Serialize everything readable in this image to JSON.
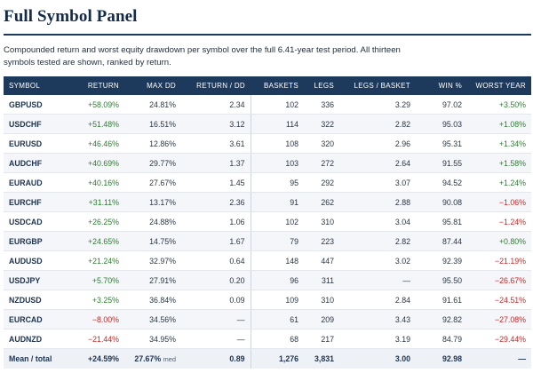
{
  "title": "Full Symbol Panel",
  "subtitle": "Compounded return and worst equity drawdown per symbol over the full 6.41-year test period. All thirteen symbols tested are shown, ranked by return.",
  "colors": {
    "header_bg": "#1d3a5c",
    "positive": "#2e7d32",
    "negative": "#c62828"
  },
  "columns": [
    "SYMBOL",
    "RETURN",
    "MAX DD",
    "RETURN / DD",
    "BASKETS",
    "LEGS",
    "LEGS / BASKET",
    "WIN %",
    "WORST YEAR"
  ],
  "rows": [
    [
      "GBPUSD",
      "+58.09%",
      "24.81%",
      "2.34",
      "102",
      "336",
      "3.29",
      "97.02",
      "+3.50%"
    ],
    [
      "USDCHF",
      "+51.48%",
      "16.51%",
      "3.12",
      "114",
      "322",
      "2.82",
      "95.03",
      "+1.08%"
    ],
    [
      "EURUSD",
      "+46.46%",
      "12.86%",
      "3.61",
      "108",
      "320",
      "2.96",
      "95.31",
      "+1.34%"
    ],
    [
      "AUDCHF",
      "+40.69%",
      "29.77%",
      "1.37",
      "103",
      "272",
      "2.64",
      "91.55",
      "+1.58%"
    ],
    [
      "EURAUD",
      "+40.16%",
      "27.67%",
      "1.45",
      "95",
      "292",
      "3.07",
      "94.52",
      "+1.24%"
    ],
    [
      "EURCHF",
      "+31.11%",
      "13.17%",
      "2.36",
      "91",
      "262",
      "2.88",
      "90.08",
      "−1.06%"
    ],
    [
      "USDCAD",
      "+26.25%",
      "24.88%",
      "1.06",
      "102",
      "310",
      "3.04",
      "95.81",
      "−1.24%"
    ],
    [
      "EURGBP",
      "+24.65%",
      "14.75%",
      "1.67",
      "79",
      "223",
      "2.82",
      "87.44",
      "+0.80%"
    ],
    [
      "AUDUSD",
      "+21.24%",
      "32.97%",
      "0.64",
      "148",
      "447",
      "3.02",
      "92.39",
      "−21.19%"
    ],
    [
      "USDJPY",
      "+5.70%",
      "27.91%",
      "0.20",
      "96",
      "311",
      "—",
      "95.50",
      "−26.67%"
    ],
    [
      "NZDUSD",
      "+3.25%",
      "36.84%",
      "0.09",
      "109",
      "310",
      "2.84",
      "91.61",
      "−24.51%"
    ],
    [
      "EURCAD",
      "−8.00%",
      "34.56%",
      "—",
      "61",
      "209",
      "3.43",
      "92.82",
      "−27.08%"
    ],
    [
      "AUDNZD",
      "−21.44%",
      "34.95%",
      "—",
      "68",
      "217",
      "3.19",
      "84.79",
      "−29.44%"
    ]
  ],
  "footer": {
    "label": "Mean / total",
    "return": "+24.59%",
    "max_dd": "27.67%",
    "max_dd_note": "med",
    "return_dd": "0.89",
    "baskets": "1,276",
    "legs": "3,831",
    "legs_basket": "3.00",
    "win": "92.98",
    "worst_year": "—"
  }
}
